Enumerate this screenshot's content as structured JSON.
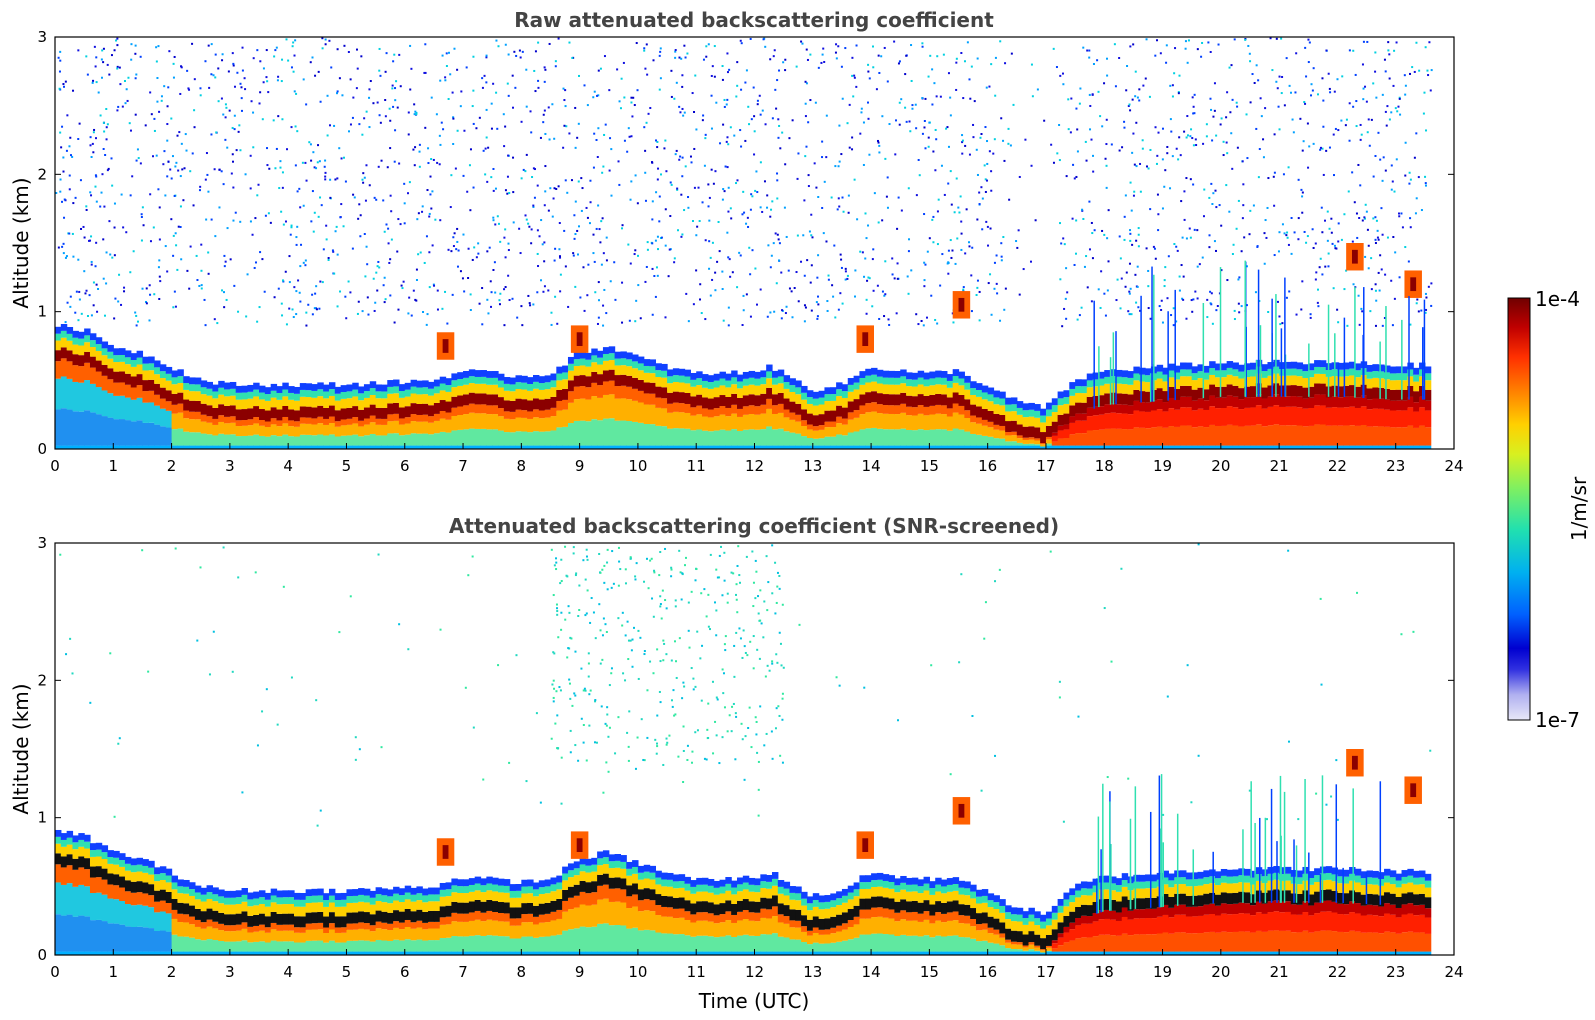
{
  "chart_data": [
    {
      "type": "heatmap",
      "title": "Raw attenuated backscattering coefficient",
      "xlabel": "",
      "ylabel": "Altitude (km)",
      "xlim": [
        0,
        24
      ],
      "ylim": [
        0,
        3
      ],
      "xticks": [
        "0",
        "1",
        "2",
        "3",
        "4",
        "5",
        "6",
        "7",
        "8",
        "9",
        "10",
        "11",
        "12",
        "13",
        "14",
        "15",
        "16",
        "17",
        "18",
        "19",
        "20",
        "21",
        "22",
        "23",
        "24"
      ],
      "yticks": [
        "0",
        "1",
        "2",
        "3"
      ],
      "data_end_hour": 23.6,
      "boundary_layer_top_km": [
        [
          0,
          0.65
        ],
        [
          0.5,
          0.62
        ],
        [
          1,
          0.5
        ],
        [
          1.5,
          0.45
        ],
        [
          2,
          0.35
        ],
        [
          2.5,
          0.25
        ],
        [
          3,
          0.22
        ],
        [
          4,
          0.22
        ],
        [
          5,
          0.22
        ],
        [
          6,
          0.24
        ],
        [
          6.5,
          0.25
        ],
        [
          7,
          0.32
        ],
        [
          7.5,
          0.3
        ],
        [
          8,
          0.28
        ],
        [
          8.5,
          0.3
        ],
        [
          9,
          0.45
        ],
        [
          9.5,
          0.5
        ],
        [
          10,
          0.42
        ],
        [
          10.5,
          0.35
        ],
        [
          11,
          0.3
        ],
        [
          11.5,
          0.3
        ],
        [
          12,
          0.32
        ],
        [
          12.3,
          0.35
        ],
        [
          12.7,
          0.25
        ],
        [
          13,
          0.18
        ],
        [
          13.5,
          0.22
        ],
        [
          14,
          0.35
        ],
        [
          14.5,
          0.32
        ],
        [
          15,
          0.3
        ],
        [
          15.5,
          0.32
        ],
        [
          16,
          0.2
        ],
        [
          16.5,
          0.1
        ],
        [
          17,
          0.05
        ],
        [
          17.5,
          0.25
        ],
        [
          18,
          0.32
        ],
        [
          19,
          0.35
        ],
        [
          20,
          0.38
        ],
        [
          21,
          0.38
        ],
        [
          22,
          0.38
        ],
        [
          23,
          0.36
        ],
        [
          23.6,
          0.36
        ]
      ],
      "cloud_features": [
        {
          "x": 6.7,
          "alt_km": 0.75
        },
        {
          "x": 9.0,
          "alt_km": 0.8
        },
        {
          "x": 13.9,
          "alt_km": 0.8
        },
        {
          "x": 15.55,
          "alt_km": 1.05
        },
        {
          "x": 22.3,
          "alt_km": 1.4
        },
        {
          "x": 23.3,
          "alt_km": 1.2
        }
      ]
    },
    {
      "type": "heatmap",
      "title": "Attenuated backscattering coefficient (SNR-screened)",
      "xlabel": "Time (UTC)",
      "ylabel": "Altitude (km)",
      "xlim": [
        0,
        24
      ],
      "ylim": [
        0,
        3
      ],
      "xticks": [
        "0",
        "1",
        "2",
        "3",
        "4",
        "5",
        "6",
        "7",
        "8",
        "9",
        "10",
        "11",
        "12",
        "13",
        "14",
        "15",
        "16",
        "17",
        "18",
        "19",
        "20",
        "21",
        "22",
        "23",
        "24"
      ],
      "yticks": [
        "0",
        "1",
        "2",
        "3"
      ],
      "data_end_hour": 23.6
    }
  ],
  "colorbar": {
    "label": "1/m/sr",
    "max_label": "1e-4",
    "min_label": "1e-7",
    "colors": [
      "#e8e8f8",
      "#b0b0f0",
      "#7070e8",
      "#1010e0",
      "#0000cc",
      "#0050ff",
      "#00a0ff",
      "#00d0e0",
      "#30e8a0",
      "#80f060",
      "#c8f030",
      "#f8e800",
      "#ffb000",
      "#ff7000",
      "#ff3000",
      "#e00000",
      "#a00000",
      "#700000"
    ]
  }
}
